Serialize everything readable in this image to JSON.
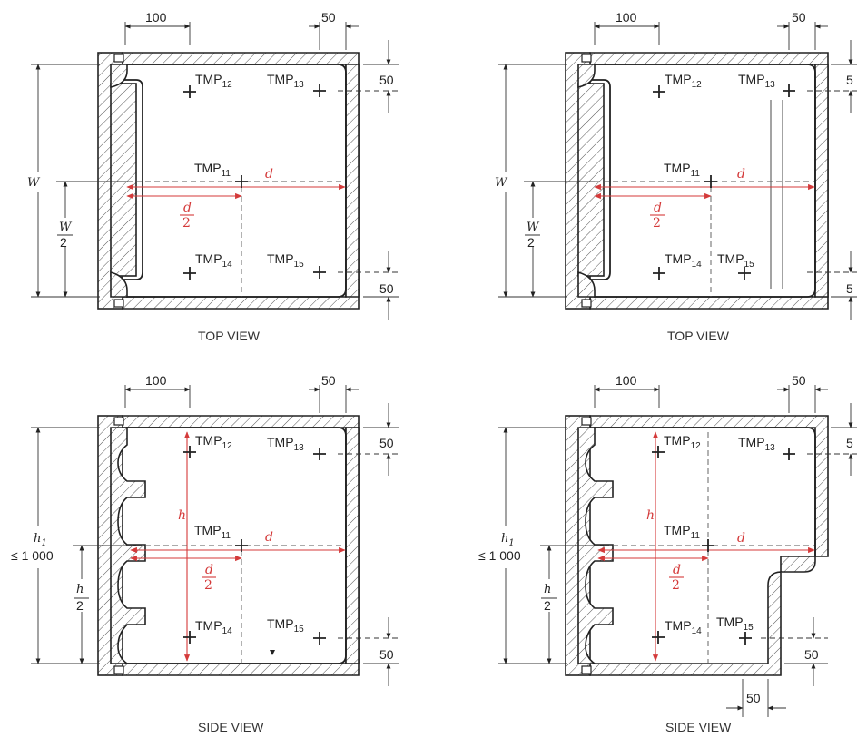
{
  "panels": [
    {
      "id": "top-view-1",
      "caption": "TOP VIEW",
      "dims": {
        "left": "100",
        "right": "50",
        "top_right": "50",
        "bottom_right": "50"
      },
      "side_label": "W",
      "half_label_num": "W",
      "half_label_den": "2",
      "depth_label": "d",
      "depth_half_num": "d",
      "depth_half_den": "2",
      "points": [
        {
          "base": "TMP",
          "sub": "12"
        },
        {
          "base": "TMP",
          "sub": "13"
        },
        {
          "base": "TMP",
          "sub": "11"
        },
        {
          "base": "TMP",
          "sub": "14"
        },
        {
          "base": "TMP",
          "sub": "15"
        }
      ]
    },
    {
      "id": "top-view-2",
      "caption": "TOP VIEW",
      "dims": {
        "left": "100",
        "right": "50",
        "top_right": "5",
        "bottom_right": "5"
      },
      "side_label": "W",
      "half_label_num": "W",
      "half_label_den": "2",
      "depth_label": "d",
      "depth_half_num": "d",
      "depth_half_den": "2",
      "points": [
        {
          "base": "TMP",
          "sub": "12"
        },
        {
          "base": "TMP",
          "sub": "13"
        },
        {
          "base": "TMP",
          "sub": "11"
        },
        {
          "base": "TMP",
          "sub": "14"
        },
        {
          "base": "TMP",
          "sub": "15"
        }
      ]
    },
    {
      "id": "side-view-1",
      "caption": "SIDE VIEW",
      "dims": {
        "left": "100",
        "right": "50",
        "top_right": "50",
        "bottom_right": "50"
      },
      "side_label": "h",
      "side_sub": "1",
      "side_limit": "≤ 1 000",
      "inner_h": "h",
      "half_label_num": "h",
      "half_label_den": "2",
      "depth_label": "d",
      "depth_half_num": "d",
      "depth_half_den": "2",
      "points": [
        {
          "base": "TMP",
          "sub": "12"
        },
        {
          "base": "TMP",
          "sub": "13"
        },
        {
          "base": "TMP",
          "sub": "11"
        },
        {
          "base": "TMP",
          "sub": "14"
        },
        {
          "base": "TMP",
          "sub": "15"
        }
      ]
    },
    {
      "id": "side-view-2",
      "caption": "SIDE VIEW",
      "dims": {
        "left": "100",
        "right": "50",
        "top_right": "5",
        "bottom_right": "50",
        "bottom": "50"
      },
      "side_label": "h",
      "side_sub": "1",
      "side_limit": "≤ 1 000",
      "inner_h": "h",
      "half_label_num": "h",
      "half_label_den": "2",
      "depth_label": "d",
      "depth_half_num": "d",
      "depth_half_den": "2",
      "points": [
        {
          "base": "TMP",
          "sub": "12"
        },
        {
          "base": "TMP",
          "sub": "13"
        },
        {
          "base": "TMP",
          "sub": "11"
        },
        {
          "base": "TMP",
          "sub": "14"
        },
        {
          "base": "TMP",
          "sub": "15"
        }
      ]
    }
  ]
}
